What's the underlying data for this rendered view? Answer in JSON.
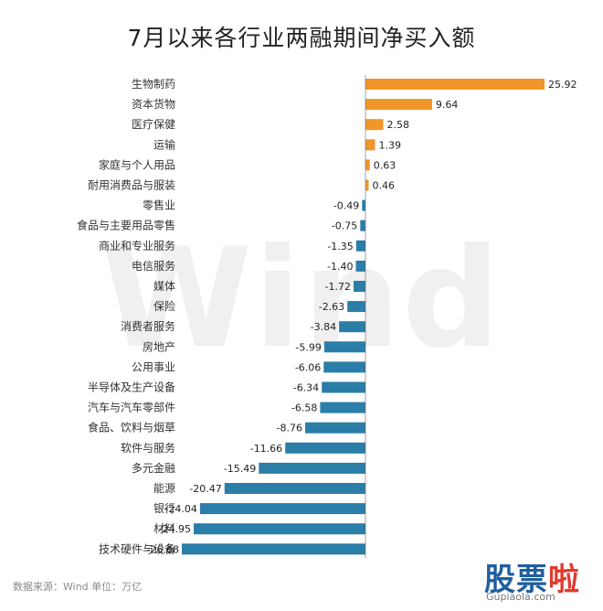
{
  "title": "7月以来各行业两融期间净买入额",
  "watermark": "Wind",
  "source_note": "数据来源：Wind  单位：万亿",
  "logo": {
    "part1": "股票",
    "part2": "啦",
    "url": "Gupiaola.com"
  },
  "colors": {
    "positive": "#f0962a",
    "negative": "#2a7ea8",
    "axis": "#666666"
  },
  "chart_data": {
    "type": "bar",
    "orientation": "horizontal",
    "title": "7月以来各行业两融期间净买入额",
    "unit": "万亿",
    "categories": [
      "生物制药",
      "资本货物",
      "医疗保健",
      "运输",
      "家庭与个人用品",
      "耐用消费品与服装",
      "零售业",
      "食品与主要用品零售",
      "商业和专业服务",
      "电信服务",
      "媒体",
      "保险",
      "消费者服务",
      "房地产",
      "公用事业",
      "半导体及生产设备",
      "汽车与汽车零部件",
      "食品、饮料与烟草",
      "软件与服务",
      "多元金融",
      "能源",
      "银行",
      "材料",
      "技术硬件与设备"
    ],
    "values": [
      25.92,
      9.64,
      2.58,
      1.39,
      0.63,
      0.46,
      -0.49,
      -0.75,
      -1.35,
      -1.4,
      -1.72,
      -2.63,
      -3.84,
      -5.99,
      -6.06,
      -6.34,
      -6.58,
      -8.76,
      -11.66,
      -15.49,
      -20.47,
      -24.04,
      -24.95,
      -26.68
    ],
    "value_labels": [
      "25.92",
      "9.64",
      "2.58",
      "1.39",
      "0.63",
      "0.46",
      "-0.49",
      "-0.75",
      "-1.35",
      "-1.40",
      "-1.72",
      "-2.63",
      "-3.84",
      "-5.99",
      "-6.06",
      "-6.34",
      "-6.58",
      "-8.76",
      "-11.66",
      "-15.49",
      "-20.47",
      "-24.04",
      "-24.95",
      "-26.68"
    ],
    "xlim": [
      -26.68,
      25.92
    ],
    "grid": false,
    "legend": "none"
  }
}
